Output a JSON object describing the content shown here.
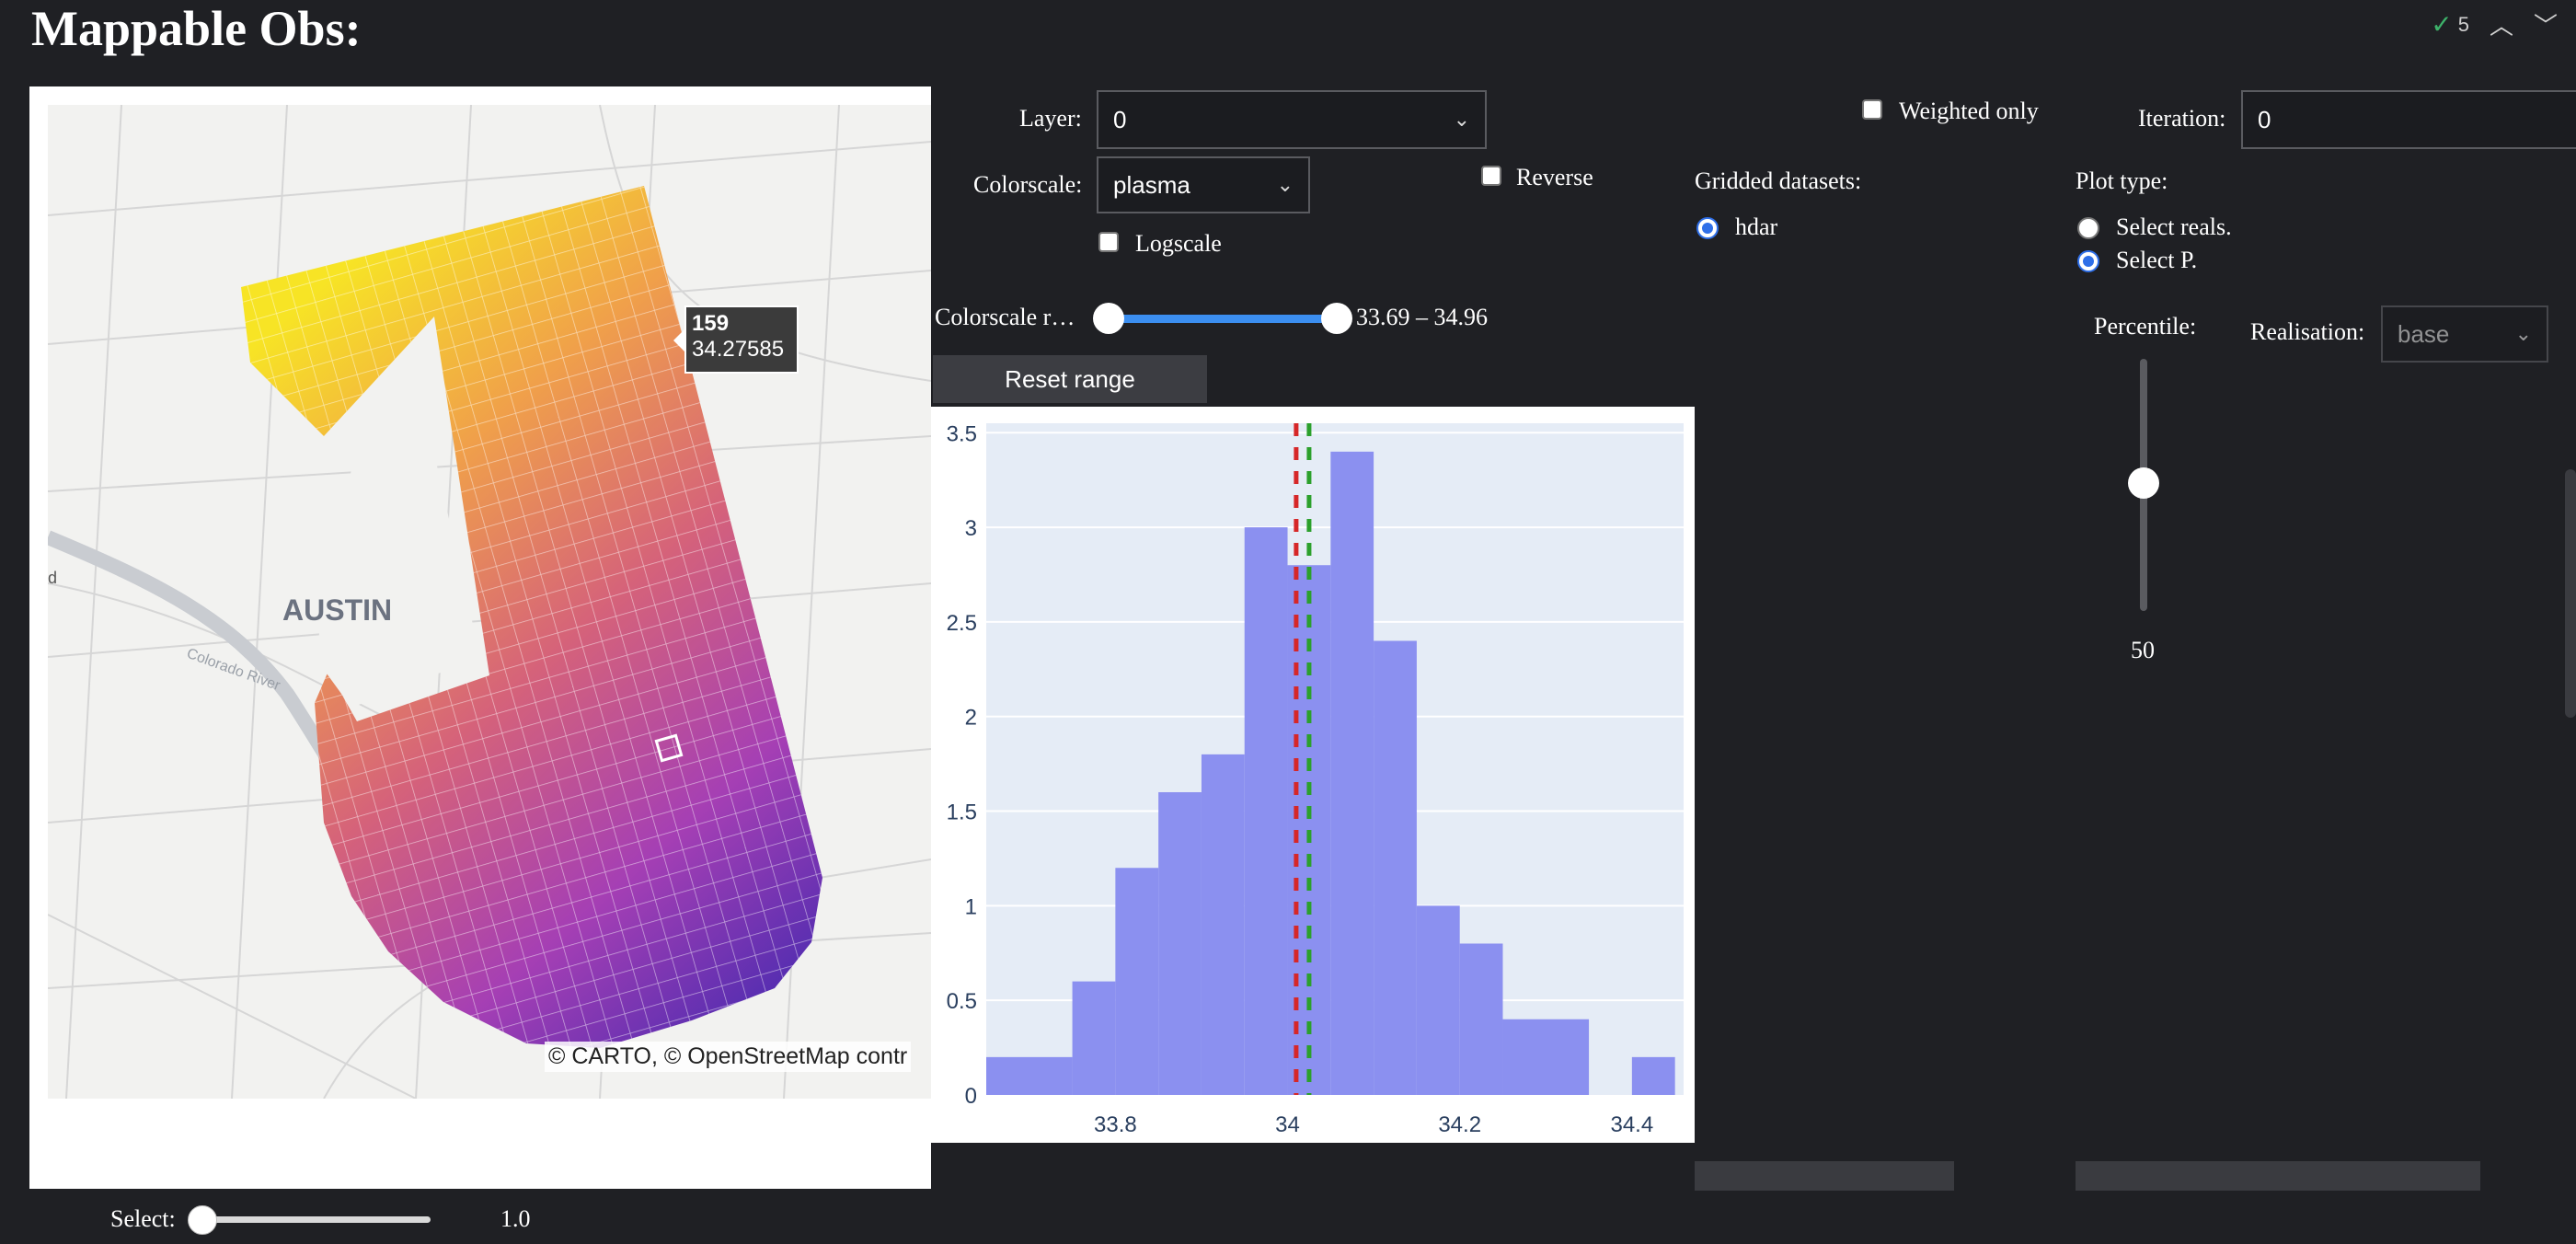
{
  "header": {
    "title": "Mappable Obs:",
    "check_count": "5",
    "check_icon": "check-icon"
  },
  "controls": {
    "layer_label": "Layer:",
    "layer_value": "0",
    "colorscale_label": "Colorscale:",
    "colorscale_value": "plasma",
    "reverse_label": "Reverse",
    "logscale_label": "Logscale",
    "weighted_only_label": "Weighted only",
    "iteration_label": "Iteration:",
    "iteration_value": "0",
    "gridded_label": "Gridded datasets:",
    "gridded_option": "hdar",
    "plot_type_label": "Plot type:",
    "plot_type_options": [
      "Select reals.",
      "Select P."
    ],
    "plot_type_selected": 1,
    "colorscale_range_label": "Colorscale r…",
    "colorscale_range_value": "33.69 – 34.96",
    "colorscale_range": [
      33.69,
      34.96
    ],
    "reset_label": "Reset range",
    "percentile_label": "Percentile:",
    "percentile_value": "50",
    "realisation_label": "Realisation:",
    "realisation_value": "base",
    "select_label": "Select:",
    "select_value": "1.0"
  },
  "map": {
    "city_label": "AUSTIN",
    "river_label": "Colorado River",
    "edge_label": "d",
    "tooltip_id": "159",
    "tooltip_value": "34.27585",
    "attribution": "© CARTO, © OpenStreetMap contr"
  },
  "chart_data": {
    "type": "bar",
    "title": "",
    "xlabel": "",
    "ylabel": "",
    "xlim": [
      33.65,
      34.46
    ],
    "ylim": [
      0,
      3.55
    ],
    "x_ticks": [
      33.8,
      34,
      34.2,
      34.4
    ],
    "x_tick_labels": [
      "33.8",
      "34",
      "34.2",
      "34.4"
    ],
    "y_ticks": [
      0,
      0.5,
      1,
      1.5,
      2,
      2.5,
      3,
      3.5
    ],
    "y_tick_labels": [
      "0",
      "0.5",
      "1",
      "1.5",
      "2",
      "2.5",
      "3",
      "3.5"
    ],
    "bins": [
      {
        "x0": 33.65,
        "x1": 33.75,
        "value": 0.2
      },
      {
        "x0": 33.75,
        "x1": 33.8,
        "value": 0.6
      },
      {
        "x0": 33.8,
        "x1": 33.85,
        "value": 1.2
      },
      {
        "x0": 33.85,
        "x1": 33.9,
        "value": 1.6
      },
      {
        "x0": 33.9,
        "x1": 33.95,
        "value": 1.8
      },
      {
        "x0": 33.95,
        "x1": 34.0,
        "value": 3.0
      },
      {
        "x0": 34.0,
        "x1": 34.05,
        "value": 2.8
      },
      {
        "x0": 34.05,
        "x1": 34.1,
        "value": 3.4
      },
      {
        "x0": 34.1,
        "x1": 34.15,
        "value": 2.4
      },
      {
        "x0": 34.15,
        "x1": 34.2,
        "value": 1.0
      },
      {
        "x0": 34.2,
        "x1": 34.25,
        "value": 0.8
      },
      {
        "x0": 34.25,
        "x1": 34.35,
        "value": 0.4
      },
      {
        "x0": 34.4,
        "x1": 34.45,
        "value": 0.2
      }
    ],
    "ref_lines": [
      {
        "x": 34.01,
        "color": "#d62728"
      },
      {
        "x": 34.025,
        "color": "#2ca02c"
      }
    ],
    "bar_color": "#8b90f0",
    "bg_color": "#e5ecf6",
    "grid": true
  }
}
